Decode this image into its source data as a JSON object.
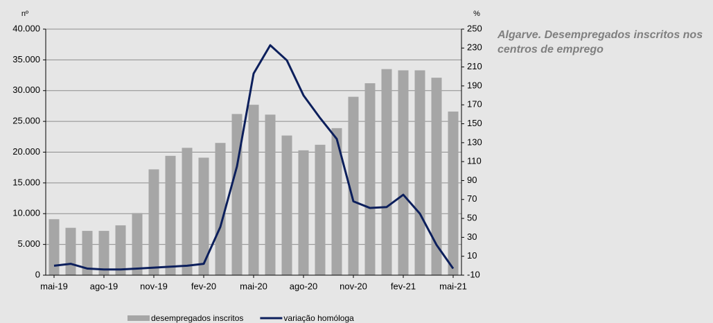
{
  "chart_data": {
    "type": "bar-line",
    "title": "Algarve. Desempregados inscritos nos centros de emprego",
    "y_label": "nº",
    "y2_label": "%",
    "categories": [
      "mai-19",
      null,
      null,
      "ago-19",
      null,
      null,
      "nov-19",
      null,
      null,
      "fev-20",
      null,
      null,
      "mai-20",
      null,
      null,
      "ago-20",
      null,
      null,
      "nov-20",
      null,
      null,
      "fev-21",
      null,
      null,
      "mai-21"
    ],
    "series": [
      {
        "name": "desempregados inscritos",
        "type": "bar",
        "color": "#a6a6a6",
        "values": [
          9100,
          7700,
          7200,
          7200,
          8100,
          10100,
          17200,
          19400,
          20700,
          19100,
          21500,
          26200,
          27700,
          26100,
          22700,
          20300,
          21200,
          23900,
          29000,
          31200,
          33500,
          33300,
          33300,
          32100,
          26600
        ]
      },
      {
        "name": "variação homóloga",
        "type": "line",
        "axis": "y2",
        "color": "#0c1f5c",
        "values": [
          0,
          2,
          -3,
          -4,
          -4,
          -3,
          -2,
          -1,
          0,
          2,
          41,
          105,
          203,
          233,
          217,
          180,
          156,
          134,
          68,
          61,
          62,
          75,
          55,
          22,
          -3
        ]
      }
    ],
    "ylim": [
      0,
      40000
    ],
    "yticks": [
      0,
      {
        "value": 5000,
        "label": "5.000"
      },
      {
        "value": 10000,
        "label": "10.000"
      },
      {
        "value": 15000,
        "label": "15.000"
      },
      {
        "value": 20000,
        "label": "20.000"
      },
      {
        "value": 25000,
        "label": "25.000"
      },
      {
        "value": 30000,
        "label": "30.000"
      },
      {
        "value": 35000,
        "label": "35.000"
      },
      {
        "value": 40000,
        "label": "40.000"
      }
    ],
    "y2lim": [
      -10,
      250
    ],
    "y2ticks": [
      -10,
      10,
      30,
      50,
      70,
      90,
      110,
      130,
      150,
      170,
      190,
      210,
      230,
      250
    ],
    "grid": true
  }
}
